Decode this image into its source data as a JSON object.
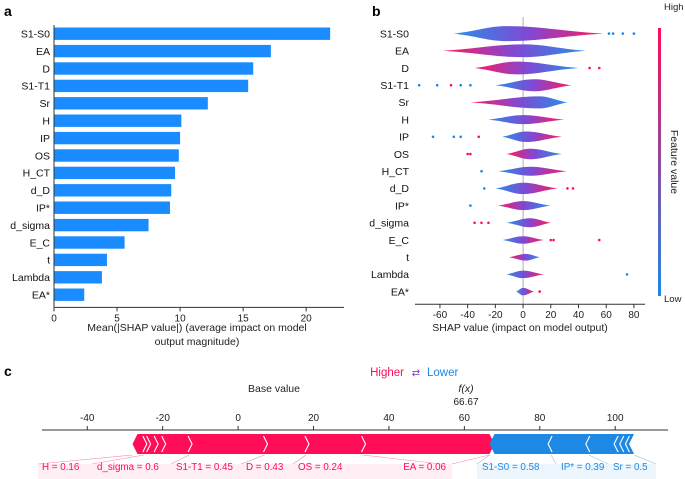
{
  "colors": {
    "bar": "#1a8cff",
    "high": "#ff0d57",
    "low": "#1e88e5",
    "axis": "#333333"
  },
  "chart_data": [
    {
      "panel": "a",
      "type": "bar",
      "orientation": "horizontal",
      "categories": [
        "S1-S0",
        "EA",
        "D",
        "S1-T1",
        "Sr",
        "H",
        "IP",
        "OS",
        "H_CT",
        "d_D",
        "IP*",
        "d_sigma",
        "E_C",
        "t",
        "Lambda",
        "EA*"
      ],
      "values": [
        21.9,
        17.2,
        15.8,
        15.4,
        12.2,
        10.1,
        10.0,
        9.9,
        9.6,
        9.3,
        9.2,
        7.5,
        5.6,
        4.2,
        3.8,
        2.4
      ],
      "xlabel": "Mean(|SHAP value|) (average impact on model output magnitude)",
      "xlabel_lines": [
        "Mean(|SHAP value|) (average impact on model",
        "output magnitude)"
      ],
      "xticks": [
        0,
        5,
        10,
        15,
        20
      ],
      "xlim": [
        0,
        23
      ]
    },
    {
      "panel": "b",
      "type": "violin",
      "features": [
        "S1-S0",
        "EA",
        "D",
        "S1-T1",
        "Sr",
        "H",
        "IP",
        "OS",
        "H_CT",
        "d_D",
        "IP*",
        "d_sigma",
        "E_C",
        "t",
        "Lambda",
        "EA*"
      ],
      "violins": [
        {
          "min": -50,
          "max": 58,
          "center": -12,
          "height": 1.0
        },
        {
          "min": -58,
          "max": 45,
          "center": 0,
          "height": 0.85
        },
        {
          "min": -35,
          "max": 40,
          "center": -5,
          "height": 0.85
        },
        {
          "min": -20,
          "max": 35,
          "center": 8,
          "height": 0.8
        },
        {
          "min": -38,
          "max": 32,
          "center": 12,
          "height": 0.8
        },
        {
          "min": -25,
          "max": 30,
          "center": 0,
          "height": 0.6
        },
        {
          "min": -15,
          "max": 28,
          "center": 2,
          "height": 0.7
        },
        {
          "min": -12,
          "max": 28,
          "center": 5,
          "height": 0.7
        },
        {
          "min": -18,
          "max": 32,
          "center": 5,
          "height": 0.6
        },
        {
          "min": -20,
          "max": 25,
          "center": 0,
          "height": 0.75
        },
        {
          "min": -18,
          "max": 20,
          "center": 0,
          "height": 0.6
        },
        {
          "min": -12,
          "max": 20,
          "center": 5,
          "height": 0.6
        },
        {
          "min": -15,
          "max": 15,
          "center": 0,
          "height": 0.5
        },
        {
          "min": -10,
          "max": 12,
          "center": 2,
          "height": 0.45
        },
        {
          "min": -12,
          "max": 15,
          "center": 0,
          "height": 0.5
        },
        {
          "min": -5,
          "max": 8,
          "center": 0,
          "height": 0.5
        }
      ],
      "outliers": [
        {
          "row": 0,
          "x": 62,
          "c": "low"
        },
        {
          "row": 0,
          "x": 65,
          "c": "low"
        },
        {
          "row": 0,
          "x": 72,
          "c": "low"
        },
        {
          "row": 0,
          "x": 80,
          "c": "low"
        },
        {
          "row": 2,
          "x": 48,
          "c": "high"
        },
        {
          "row": 2,
          "x": 55,
          "c": "high"
        },
        {
          "row": 3,
          "x": -75,
          "c": "low"
        },
        {
          "row": 3,
          "x": -62,
          "c": "low"
        },
        {
          "row": 3,
          "x": -52,
          "c": "high"
        },
        {
          "row": 3,
          "x": -45,
          "c": "low"
        },
        {
          "row": 3,
          "x": -38,
          "c": "low"
        },
        {
          "row": 6,
          "x": -65,
          "c": "low"
        },
        {
          "row": 6,
          "x": -50,
          "c": "low"
        },
        {
          "row": 6,
          "x": -45,
          "c": "low"
        },
        {
          "row": 6,
          "x": -32,
          "c": "high"
        },
        {
          "row": 7,
          "x": -40,
          "c": "high"
        },
        {
          "row": 7,
          "x": -38,
          "c": "high"
        },
        {
          "row": 8,
          "x": -30,
          "c": "low"
        },
        {
          "row": 9,
          "x": -28,
          "c": "low"
        },
        {
          "row": 9,
          "x": 32,
          "c": "high"
        },
        {
          "row": 9,
          "x": 36,
          "c": "high"
        },
        {
          "row": 10,
          "x": -38,
          "c": "low"
        },
        {
          "row": 11,
          "x": -35,
          "c": "high"
        },
        {
          "row": 11,
          "x": -30,
          "c": "high"
        },
        {
          "row": 11,
          "x": -25,
          "c": "high"
        },
        {
          "row": 12,
          "x": 20,
          "c": "high"
        },
        {
          "row": 12,
          "x": 22,
          "c": "high"
        },
        {
          "row": 12,
          "x": 55,
          "c": "high"
        },
        {
          "row": 14,
          "x": 75,
          "c": "low"
        },
        {
          "row": 15,
          "x": 12,
          "c": "high"
        }
      ],
      "xlabel": "SHAP value (impact on model output)",
      "xticks": [
        -60,
        -40,
        -20,
        0,
        20,
        40,
        60,
        80
      ],
      "xlim": [
        -78,
        88
      ],
      "colorbar": {
        "high_label": "High",
        "low_label": "Low",
        "title": "Feature value"
      }
    },
    {
      "panel": "c",
      "type": "force",
      "base_value_label": "Base value",
      "fx_label": "f(x)",
      "fx_value": "66.67",
      "fx": 66.67,
      "higher_label": "Higher",
      "arrow_glyph": "⇄",
      "lower_label": "Lower",
      "xticks": [
        -40,
        -20,
        0,
        20,
        40,
        60,
        80,
        100
      ],
      "xlim": [
        -52,
        114
      ],
      "red_segments": [
        {
          "label": "H = 0.16",
          "from": -28,
          "to": -25
        },
        {
          "label": "d_sigma = 0.6",
          "from": -25,
          "to": -13
        },
        {
          "label": "S1-T1 = 0.45",
          "from": -13,
          "to": 7
        },
        {
          "label": "D = 0.43",
          "from": 7,
          "to": 18
        },
        {
          "label": "OS = 0.24",
          "from": 18,
          "to": 33
        },
        {
          "label": "EA = 0.06",
          "from": 33,
          "to": 66.67
        }
      ],
      "red_extra_chevrons": [
        -24,
        -22,
        -20
      ],
      "blue_segments": [
        {
          "label": "S1-S0 = 0.58",
          "from": 66.67,
          "to": 83
        },
        {
          "label": "IP* = 0.39",
          "from": 83,
          "to": 93
        },
        {
          "label": "Sr = 0.5",
          "from": 93,
          "to": 99
        }
      ],
      "blue_extra_chevrons": [
        100.5,
        102,
        103.5
      ],
      "blue_end": 105
    }
  ]
}
